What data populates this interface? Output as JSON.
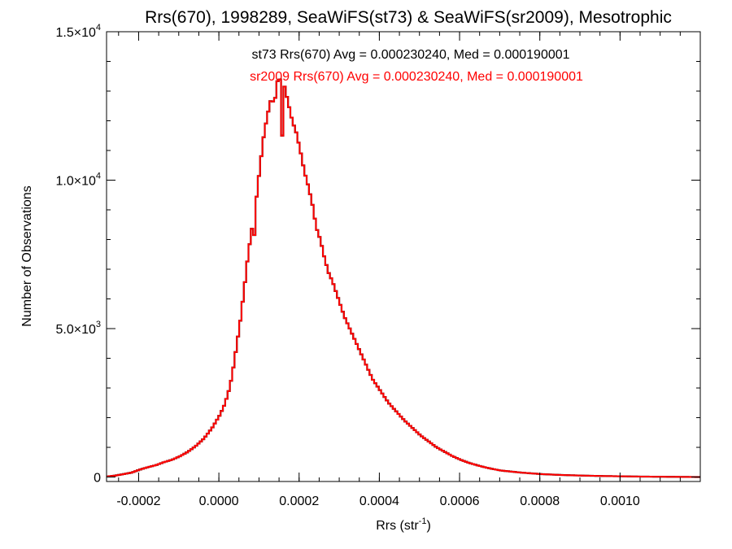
{
  "chart_data": {
    "type": "line",
    "title": "Rrs(670), 1998289, SeaWiFS(st73) & SeaWiFS(sr2009), Mesotrophic",
    "xlabel_main": "Rrs (str",
    "xlabel_sup": "-1",
    "xlabel_end": ")",
    "ylabel": "Number of Observations",
    "xlim": [
      -0.00028,
      0.0012
    ],
    "ylim": [
      -150,
      15000
    ],
    "x_ticks": [
      {
        "value": -0.0002,
        "label": "-0.0002"
      },
      {
        "value": 0.0,
        "label": "0.0000"
      },
      {
        "value": 0.0002,
        "label": "0.0002"
      },
      {
        "value": 0.0004,
        "label": "0.0004"
      },
      {
        "value": 0.0006,
        "label": "0.0006"
      },
      {
        "value": 0.0008,
        "label": "0.0008"
      },
      {
        "value": 0.001,
        "label": "0.0010"
      }
    ],
    "x_minor_step": 5e-05,
    "y_ticks": [
      {
        "value": 0,
        "mant": "0",
        "exp": ""
      },
      {
        "value": 5000,
        "mant": "5.0×10",
        "exp": "3"
      },
      {
        "value": 10000,
        "mant": "1.0×10",
        "exp": "4"
      },
      {
        "value": 15000,
        "mant": "1.5×10",
        "exp": "4"
      }
    ],
    "y_minor_step": 1000,
    "annotations": [
      {
        "text": "st73 Rrs(670) Avg = 0.000230240, Med = 0.000190001",
        "color": "#000000"
      },
      {
        "text": "sr2009 Rrs(670) Avg = 0.000230240, Med = 0.000190001",
        "color": "#ff0000"
      }
    ],
    "series": [
      {
        "name": "st73",
        "color": "#000000",
        "bin_width": 5.8e-06,
        "bins": [
          [
            -0.00028,
            20
          ],
          [
            -0.00026,
            50
          ],
          [
            -0.00024,
            100
          ],
          [
            -0.00022,
            150
          ],
          [
            -0.0002,
            250
          ],
          [
            -0.00018,
            330
          ],
          [
            -0.00016,
            400
          ],
          [
            -0.00014,
            500
          ],
          [
            -0.00012,
            580
          ],
          [
            -0.0001,
            700
          ],
          [
            -8e-05,
            850
          ],
          [
            -6e-05,
            1050
          ],
          [
            -4e-05,
            1300
          ],
          [
            -2e-05,
            1650
          ],
          [
            0.0,
            2100
          ],
          [
            1e-05,
            2400
          ],
          [
            2e-05,
            2800
          ],
          [
            3e-05,
            3400
          ],
          [
            4e-05,
            4300
          ],
          [
            5e-05,
            5200
          ],
          [
            6e-05,
            6300
          ],
          [
            7e-05,
            7500
          ],
          [
            8e-05,
            8400
          ],
          [
            8.5e-05,
            8050
          ],
          [
            9e-05,
            9300
          ],
          [
            0.0001,
            10500
          ],
          [
            0.00011,
            11600
          ],
          [
            0.00012,
            12300
          ],
          [
            0.00013,
            12900
          ],
          [
            0.000135,
            12200
          ],
          [
            0.00014,
            13300
          ],
          [
            0.00015,
            13400
          ],
          [
            0.000155,
            11500
          ],
          [
            0.00016,
            13200
          ],
          [
            0.00017,
            12600
          ],
          [
            0.00018,
            12000
          ],
          [
            0.00019,
            11600
          ],
          [
            0.0002,
            11000
          ],
          [
            0.00021,
            10300
          ],
          [
            0.00022,
            9800
          ],
          [
            0.00023,
            9200
          ],
          [
            0.00024,
            8400
          ],
          [
            0.00025,
            8000
          ],
          [
            0.00026,
            7400
          ],
          [
            0.00027,
            6900
          ],
          [
            0.00028,
            6600
          ],
          [
            0.00029,
            6200
          ],
          [
            0.0003,
            5800
          ],
          [
            0.00031,
            5400
          ],
          [
            0.00032,
            5100
          ],
          [
            0.00033,
            4800
          ],
          [
            0.00034,
            4500
          ],
          [
            0.00035,
            4200
          ],
          [
            0.00036,
            3900
          ],
          [
            0.00037,
            3600
          ],
          [
            0.00038,
            3300
          ],
          [
            0.00039,
            3100
          ],
          [
            0.0004,
            2900
          ],
          [
            0.00042,
            2500
          ],
          [
            0.00044,
            2200
          ],
          [
            0.00046,
            1900
          ],
          [
            0.00048,
            1650
          ],
          [
            0.0005,
            1400
          ],
          [
            0.00052,
            1200
          ],
          [
            0.00054,
            1000
          ],
          [
            0.00056,
            850
          ],
          [
            0.00058,
            700
          ],
          [
            0.0006,
            580
          ],
          [
            0.00062,
            480
          ],
          [
            0.00064,
            400
          ],
          [
            0.00066,
            330
          ],
          [
            0.00068,
            270
          ],
          [
            0.0007,
            220
          ],
          [
            0.00075,
            150
          ],
          [
            0.0008,
            100
          ],
          [
            0.00085,
            70
          ],
          [
            0.0009,
            50
          ],
          [
            0.00095,
            35
          ],
          [
            0.001,
            25
          ],
          [
            0.00105,
            15
          ],
          [
            0.0011,
            10
          ],
          [
            0.00115,
            5
          ],
          [
            0.0012,
            0
          ]
        ]
      },
      {
        "name": "sr2009",
        "color": "#ff0000",
        "bin_width": 5.8e-06,
        "bins": [
          [
            -0.00028,
            20
          ],
          [
            -0.00026,
            50
          ],
          [
            -0.00024,
            100
          ],
          [
            -0.00022,
            150
          ],
          [
            -0.0002,
            250
          ],
          [
            -0.00018,
            330
          ],
          [
            -0.00016,
            400
          ],
          [
            -0.00014,
            500
          ],
          [
            -0.00012,
            580
          ],
          [
            -0.0001,
            700
          ],
          [
            -8e-05,
            850
          ],
          [
            -6e-05,
            1050
          ],
          [
            -4e-05,
            1300
          ],
          [
            -2e-05,
            1650
          ],
          [
            0.0,
            2100
          ],
          [
            1e-05,
            2400
          ],
          [
            2e-05,
            2800
          ],
          [
            3e-05,
            3400
          ],
          [
            4e-05,
            4300
          ],
          [
            5e-05,
            5200
          ],
          [
            6e-05,
            6300
          ],
          [
            7e-05,
            7500
          ],
          [
            8e-05,
            8400
          ],
          [
            8.5e-05,
            8050
          ],
          [
            9e-05,
            9300
          ],
          [
            0.0001,
            10500
          ],
          [
            0.00011,
            11600
          ],
          [
            0.00012,
            12300
          ],
          [
            0.00013,
            12900
          ],
          [
            0.000135,
            12200
          ],
          [
            0.00014,
            13300
          ],
          [
            0.00015,
            13400
          ],
          [
            0.000155,
            11500
          ],
          [
            0.00016,
            13200
          ],
          [
            0.00017,
            12600
          ],
          [
            0.00018,
            12000
          ],
          [
            0.00019,
            11600
          ],
          [
            0.0002,
            11000
          ],
          [
            0.00021,
            10300
          ],
          [
            0.00022,
            9800
          ],
          [
            0.00023,
            9200
          ],
          [
            0.00024,
            8400
          ],
          [
            0.00025,
            8000
          ],
          [
            0.00026,
            7400
          ],
          [
            0.00027,
            6900
          ],
          [
            0.00028,
            6600
          ],
          [
            0.00029,
            6200
          ],
          [
            0.0003,
            5800
          ],
          [
            0.00031,
            5400
          ],
          [
            0.00032,
            5100
          ],
          [
            0.00033,
            4800
          ],
          [
            0.00034,
            4500
          ],
          [
            0.00035,
            4200
          ],
          [
            0.00036,
            3900
          ],
          [
            0.00037,
            3600
          ],
          [
            0.00038,
            3300
          ],
          [
            0.00039,
            3100
          ],
          [
            0.0004,
            2900
          ],
          [
            0.00042,
            2500
          ],
          [
            0.00044,
            2200
          ],
          [
            0.00046,
            1900
          ],
          [
            0.00048,
            1650
          ],
          [
            0.0005,
            1400
          ],
          [
            0.00052,
            1200
          ],
          [
            0.00054,
            1000
          ],
          [
            0.00056,
            850
          ],
          [
            0.00058,
            700
          ],
          [
            0.0006,
            580
          ],
          [
            0.00062,
            480
          ],
          [
            0.00064,
            400
          ],
          [
            0.00066,
            330
          ],
          [
            0.00068,
            270
          ],
          [
            0.0007,
            220
          ],
          [
            0.00075,
            150
          ],
          [
            0.0008,
            100
          ],
          [
            0.00085,
            70
          ],
          [
            0.0009,
            50
          ],
          [
            0.00095,
            35
          ],
          [
            0.001,
            25
          ],
          [
            0.00105,
            15
          ],
          [
            0.0011,
            10
          ],
          [
            0.00115,
            5
          ],
          [
            0.0012,
            0
          ]
        ]
      }
    ],
    "grid": false,
    "legend": "none"
  }
}
